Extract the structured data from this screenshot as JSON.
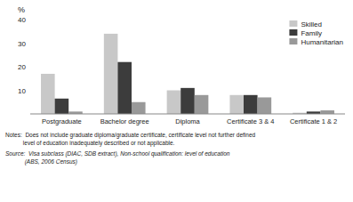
{
  "chart_data": {
    "type": "bar",
    "categories": [
      "Postgraduate",
      "Bachelor degree",
      "Diploma",
      "Certificate 3 & 4",
      "Certificate 1 & 2"
    ],
    "series": [
      {
        "name": "Skilled",
        "color": "#c8c8c8",
        "values": [
          17,
          34,
          10,
          8,
          0.5
        ]
      },
      {
        "name": "Family",
        "color": "#3c3c3c",
        "values": [
          6.5,
          22,
          11,
          8,
          1
        ]
      },
      {
        "name": "Humanitarian",
        "color": "#999999",
        "values": [
          1,
          5,
          8,
          7,
          1.5
        ]
      }
    ],
    "ylabel": "%",
    "ylim": [
      0,
      40
    ],
    "yticks": [
      10,
      20,
      30,
      40
    ],
    "grid": false,
    "legend": "upper right",
    "annotations": [
      "Notes:  Does not include graduate diploma/graduate certificate, certificate level not further defined",
      "           level of education inadequately described or not applicable.",
      "Source:  Visa subclass (DIAC, SDB extract), Non-school qualification: level of education",
      "            (ABS, 2006 Census)"
    ]
  }
}
